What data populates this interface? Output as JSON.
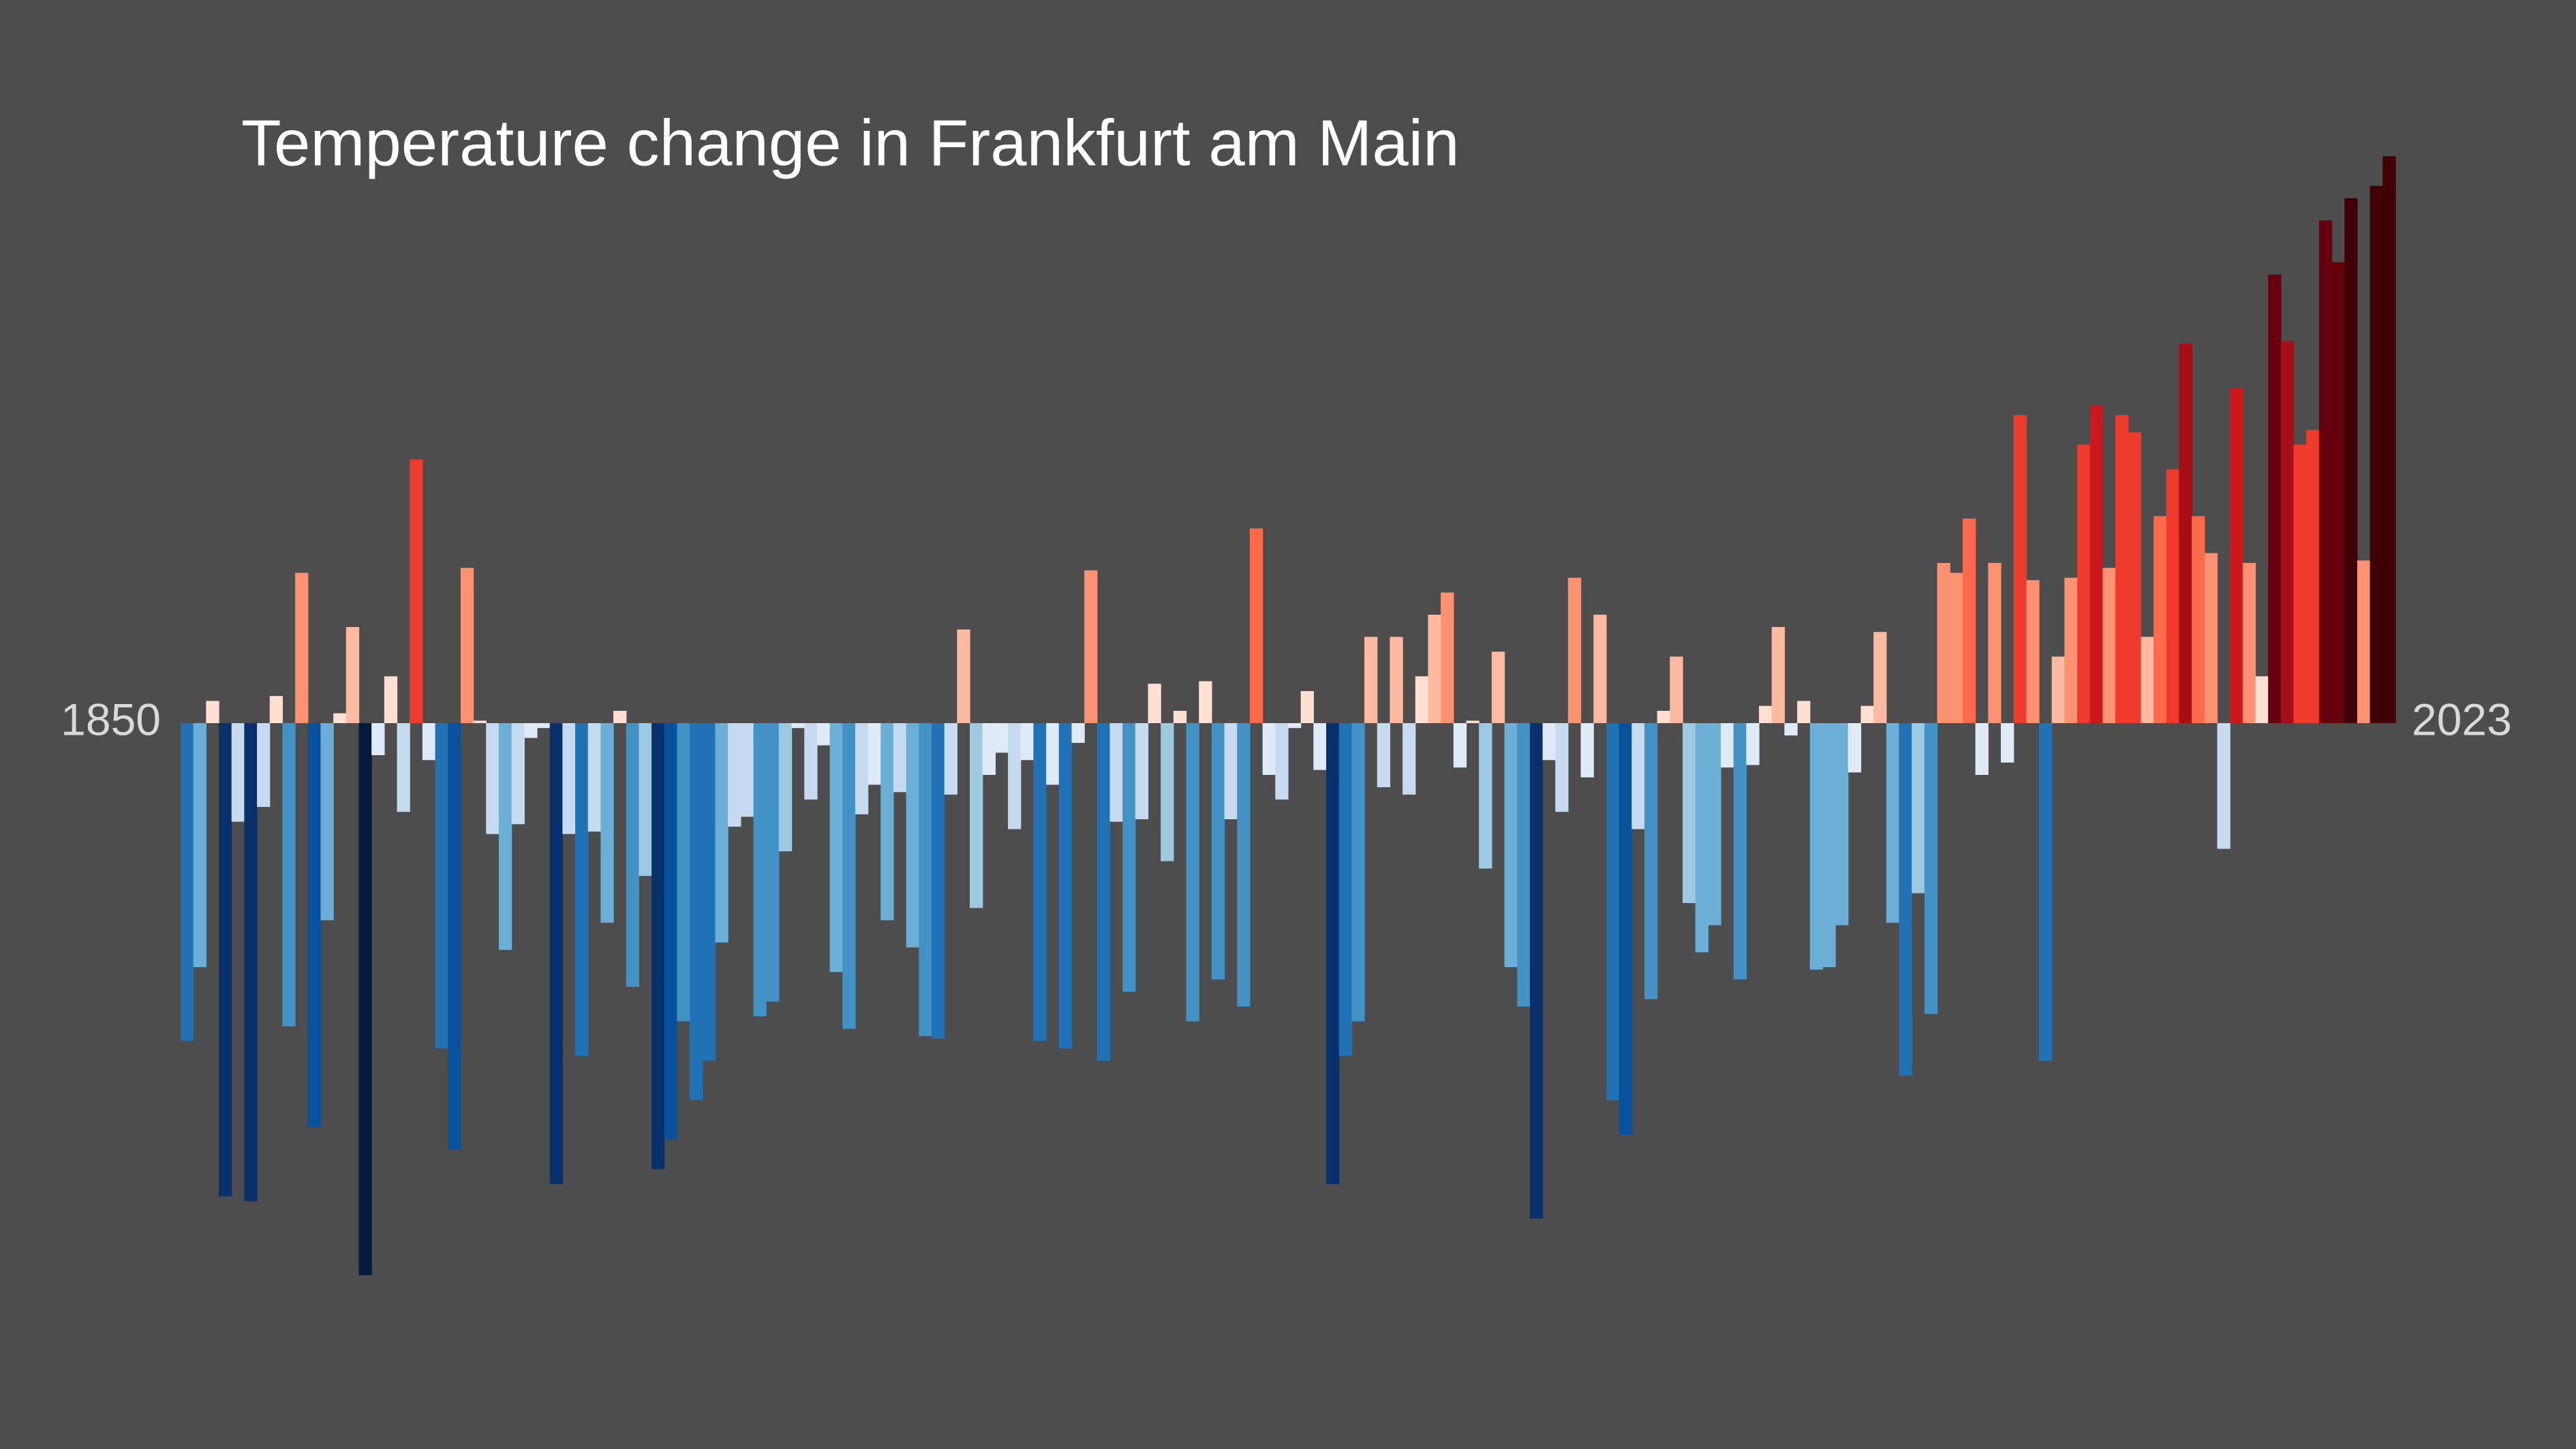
{
  "chart_data": {
    "type": "bar",
    "title": "Temperature change in Frankfurt am Main",
    "x": [
      1850,
      1851,
      1852,
      1853,
      1854,
      1855,
      1856,
      1857,
      1858,
      1859,
      1860,
      1861,
      1862,
      1863,
      1864,
      1865,
      1866,
      1867,
      1868,
      1869,
      1870,
      1871,
      1872,
      1873,
      1874,
      1875,
      1876,
      1877,
      1878,
      1879,
      1880,
      1881,
      1882,
      1883,
      1884,
      1885,
      1886,
      1887,
      1888,
      1889,
      1890,
      1891,
      1892,
      1893,
      1894,
      1895,
      1896,
      1897,
      1898,
      1899,
      1900,
      1901,
      1902,
      1903,
      1904,
      1905,
      1906,
      1907,
      1908,
      1909,
      1910,
      1911,
      1912,
      1913,
      1914,
      1915,
      1916,
      1917,
      1918,
      1919,
      1920,
      1921,
      1922,
      1923,
      1924,
      1925,
      1926,
      1927,
      1928,
      1929,
      1930,
      1931,
      1932,
      1933,
      1934,
      1935,
      1936,
      1937,
      1938,
      1939,
      1940,
      1941,
      1942,
      1943,
      1944,
      1945,
      1946,
      1947,
      1948,
      1949,
      1950,
      1951,
      1952,
      1953,
      1954,
      1955,
      1956,
      1957,
      1958,
      1959,
      1960,
      1961,
      1962,
      1963,
      1964,
      1965,
      1966,
      1967,
      1968,
      1969,
      1970,
      1971,
      1972,
      1973,
      1974,
      1975,
      1976,
      1977,
      1978,
      1979,
      1980,
      1981,
      1982,
      1983,
      1984,
      1985,
      1986,
      1987,
      1988,
      1989,
      1990,
      1991,
      1992,
      1993,
      1994,
      1995,
      1996,
      1997,
      1998,
      1999,
      2000,
      2001,
      2002,
      2003,
      2004,
      2005,
      2006,
      2007,
      2008,
      2009,
      2010,
      2011,
      2012,
      2013,
      2014,
      2015,
      2016,
      2017,
      2018,
      2019,
      2020,
      2021,
      2022,
      2023
    ],
    "values": [
      -1.29,
      -0.99,
      0.09,
      -1.92,
      -0.4,
      -1.94,
      -0.34,
      0.11,
      -1.23,
      0.61,
      -1.64,
      -0.8,
      0.04,
      0.39,
      -2.24,
      -0.13,
      0.19,
      -0.36,
      1.07,
      -0.15,
      -1.32,
      -1.73,
      0.63,
      0.01,
      -0.45,
      -0.92,
      -0.41,
      -0.06,
      -0.02,
      -1.87,
      -0.45,
      -1.35,
      -0.44,
      -0.81,
      0.05,
      -1.07,
      -0.62,
      -1.81,
      -1.69,
      -1.21,
      -1.53,
      -1.37,
      -0.89,
      -0.42,
      -0.38,
      -1.19,
      -1.13,
      -0.52,
      -0.02,
      -0.31,
      -0.09,
      -1.01,
      -1.24,
      -0.37,
      -0.25,
      -0.8,
      -0.28,
      -0.91,
      -1.27,
      -1.28,
      -0.29,
      0.38,
      -0.75,
      -0.21,
      -0.12,
      -0.43,
      -0.15,
      -1.29,
      -0.25,
      -1.32,
      -0.08,
      0.62,
      -1.37,
      -0.4,
      -1.09,
      -0.39,
      0.16,
      -0.56,
      0.05,
      -1.21,
      0.17,
      -1.04,
      -0.39,
      -1.15,
      0.79,
      -0.21,
      -0.31,
      -0.02,
      0.13,
      -0.19,
      -1.87,
      -1.35,
      -1.21,
      0.35,
      -0.26,
      0.35,
      -0.29,
      0.19,
      0.44,
      0.53,
      -0.18,
      0.01,
      -0.59,
      0.29,
      -0.99,
      -1.15,
      -2.01,
      -0.15,
      -0.36,
      0.59,
      -0.22,
      0.44,
      -1.53,
      -1.67,
      -0.43,
      -1.12,
      0.05,
      0.27,
      -0.73,
      -0.93,
      -0.82,
      -0.18,
      -1.04,
      -0.17,
      0.07,
      0.39,
      -0.05,
      0.09,
      -1.0,
      -0.99,
      -0.82,
      -0.2,
      0.07,
      0.37,
      -0.81,
      -1.43,
      -0.69,
      -1.18,
      0.65,
      0.61,
      0.83,
      -0.21,
      0.65,
      -0.16,
      1.25,
      0.58,
      -1.37,
      0.27,
      0.59,
      1.13,
      1.29,
      0.63,
      1.25,
      1.18,
      0.35,
      0.84,
      1.03,
      1.54,
      0.84,
      0.69,
      -0.51,
      1.36,
      0.65,
      0.19,
      1.82,
      1.55,
      1.13,
      1.19,
      2.04,
      1.87,
      2.13,
      0.66,
      2.18,
      2.3
    ]
  }
}
